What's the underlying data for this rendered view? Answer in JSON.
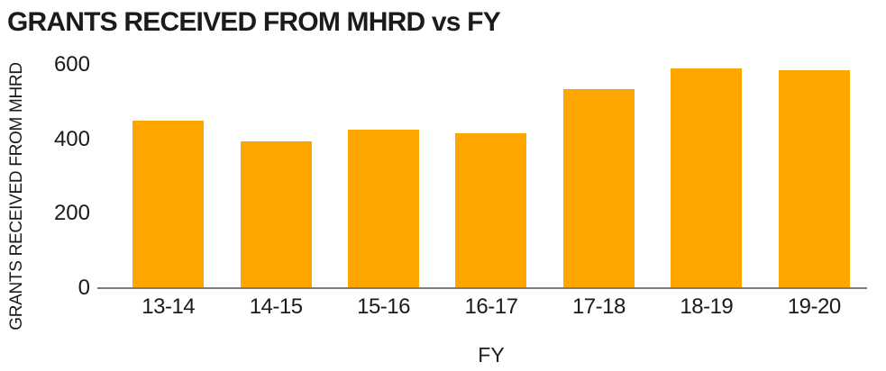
{
  "chart_data": {
    "type": "bar",
    "title": "GRANTS RECEIVED FROM MHRD vs FY",
    "xlabel": "FY",
    "ylabel": "GRANTS RECEIVED FROM MHRD",
    "categories": [
      "13-14",
      "14-15",
      "15-16",
      "16-17",
      "17-18",
      "18-19",
      "19-20"
    ],
    "values": [
      450,
      395,
      425,
      415,
      535,
      590,
      585
    ],
    "yticks": [
      0,
      200,
      400,
      600
    ],
    "ylim": [
      0,
      600
    ],
    "grid": false,
    "legend_position": "none",
    "bar_color": "#FFA502",
    "axis_line_color": "#7B7B7B",
    "text_color": "#1A1A1A",
    "background_color": "#FFFFFF"
  }
}
